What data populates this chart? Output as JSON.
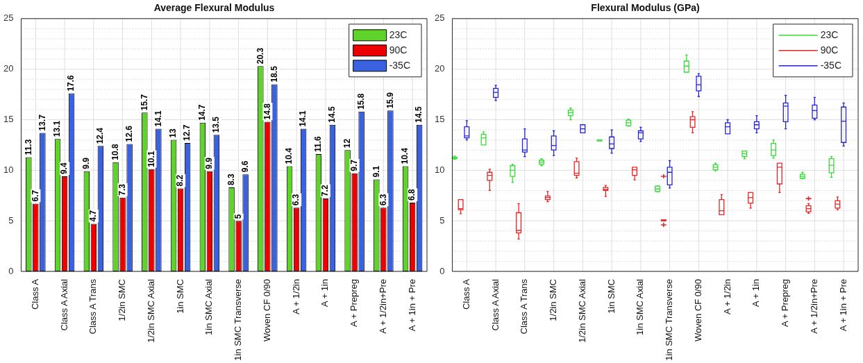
{
  "chart_data": [
    {
      "type": "bar",
      "title": "Average Flexural Modulus",
      "categories": [
        "Class A",
        "Class A Axial",
        "Class A Trans",
        "1/2in SMC",
        "1/2in SMC Axial",
        "1in SMC",
        "1in SMC Axial",
        "1in SMC Transverse",
        "Woven CF 0/90",
        "A + 1/2in",
        "A + 1in",
        "A + Prepreg",
        "A + 1/2in+Pre",
        "A + 1in + Pre"
      ],
      "series": [
        {
          "name": "23C",
          "color": "#5fd32a",
          "values": [
            11.3,
            13.1,
            9.9,
            10.8,
            15.7,
            13,
            14.7,
            8.3,
            20.3,
            10.4,
            11.6,
            12,
            9.1,
            10.4
          ]
        },
        {
          "name": "90C",
          "color": "#ee0000",
          "values": [
            6.7,
            9.4,
            4.7,
            7.3,
            10.1,
            8.2,
            9.9,
            5,
            14.8,
            6.3,
            7.2,
            9.7,
            6.3,
            6.8
          ]
        },
        {
          "name": "-35C",
          "color": "#3a62e0",
          "values": [
            13.7,
            17.6,
            12.4,
            12.6,
            14.1,
            12.7,
            13.5,
            9.6,
            18.5,
            14.1,
            14.5,
            15.8,
            15.9,
            14.5
          ]
        }
      ],
      "ylim": [
        0,
        25
      ],
      "yticks": [
        0,
        {
          "value": 1,
          "label": null
        },
        {
          "value": 2,
          "label": null
        },
        {
          "value": 3,
          "label": null
        },
        {
          "value": 4,
          "label": null
        },
        5,
        {
          "value": 6,
          "label": null
        },
        {
          "value": 7,
          "label": null
        },
        {
          "value": 8,
          "label": null
        },
        {
          "value": 9,
          "label": null
        },
        10,
        {
          "value": 11,
          "label": null
        },
        {
          "value": 12,
          "label": null
        },
        {
          "value": 13,
          "label": null
        },
        {
          "value": 14,
          "label": null
        },
        15,
        {
          "value": 16,
          "label": null
        },
        {
          "value": 17,
          "label": null
        },
        {
          "value": 18,
          "label": null
        },
        {
          "value": 19,
          "label": null
        },
        20,
        {
          "value": 21,
          "label": null
        },
        {
          "value": 22,
          "label": null
        },
        {
          "value": 23,
          "label": null
        },
        {
          "value": 24,
          "label": null
        },
        25
      ],
      "grid": true,
      "legend": "top right",
      "data_labels": true
    },
    {
      "type": "box",
      "title": "Flexural Modulus (GPa)",
      "categories": [
        "Class A",
        "Class A Axial",
        "Class A Trans",
        "1/2in SMC",
        "1/2in SMC Axial",
        "1in SMC",
        "1in SMC Axial",
        "1in SMC Transverse",
        "Woven CF 0/90",
        "A + 1/2in",
        "A + 1in",
        "A + Prepreg",
        "A + 1/2in+Pre",
        "A + 1in + Pre"
      ],
      "series": [
        {
          "name": "23C",
          "color": "#33dd33",
          "boxes": [
            {
              "low": 11.1,
              "q1": 11.15,
              "median": 11.2,
              "q3": 11.3,
              "high": 11.4
            },
            {
              "low": 12.5,
              "q1": 12.5,
              "median": 13.2,
              "q3": 13.55,
              "high": 13.8
            },
            {
              "low": 8.8,
              "q1": 9.4,
              "median": 10,
              "q3": 10.45,
              "high": 10.6
            },
            {
              "low": 10.45,
              "q1": 10.6,
              "median": 10.8,
              "q3": 11,
              "high": 11.15
            },
            {
              "low": 15,
              "q1": 15.4,
              "median": 15.7,
              "q3": 15.95,
              "high": 16.15
            },
            {
              "low": 12.9,
              "q1": 12.9,
              "median": 13,
              "q3": 13,
              "high": 13
            },
            {
              "low": 14.35,
              "q1": 14.4,
              "median": 14.7,
              "q3": 14.95,
              "high": 15.05
            },
            {
              "low": 7.85,
              "q1": 7.9,
              "median": 8.15,
              "q3": 8.43,
              "high": 8.45
            },
            {
              "low": 19.7,
              "q1": 19.7,
              "median": 20.3,
              "q3": 20.8,
              "high": 21.4
            },
            {
              "low": 9.95,
              "q1": 10.05,
              "median": 10.3,
              "q3": 10.55,
              "high": 10.7
            },
            {
              "low": 11.15,
              "q1": 11.35,
              "median": 11.65,
              "q3": 11.9,
              "high": 11.9
            },
            {
              "low": 11.2,
              "q1": 11.45,
              "median": 12,
              "q3": 12.65,
              "high": 13
            },
            {
              "low": 9.15,
              "q1": 9.2,
              "median": 9.4,
              "q3": 9.6,
              "high": 9.8
            },
            {
              "low": 9.3,
              "q1": 9.75,
              "median": 10.5,
              "q3": 11.15,
              "high": 11.35
            }
          ]
        },
        {
          "name": "90C",
          "color": "#ee2222",
          "boxes": [
            {
              "low": 5.7,
              "q1": 6.1,
              "median": 6.2,
              "q3": 7.1,
              "high": 7.1
            },
            {
              "low": 8,
              "q1": 9,
              "median": 9.5,
              "q3": 9.8,
              "high": 10.1
            },
            {
              "low": 3.2,
              "q1": 3.8,
              "median": 4.05,
              "q3": 5.8,
              "high": 6.7
            },
            {
              "low": 6.9,
              "q1": 7.1,
              "median": 7.3,
              "q3": 7.45,
              "high": 7.9
            },
            {
              "low": 9.25,
              "q1": 9.5,
              "median": 9.7,
              "q3": 10.85,
              "high": 11.2
            },
            {
              "low": 7.4,
              "q1": 8,
              "median": 8.1,
              "q3": 8.3,
              "high": 8.5
            },
            {
              "low": 9.05,
              "q1": 9.5,
              "median": 10.05,
              "q3": 10.3,
              "high": 10.3
            },
            {
              "low": 5,
              "q1": 5,
              "median": 5,
              "q3": 5.1,
              "high": 5.1,
              "outliers": [
                4.6,
                9.4
              ]
            },
            {
              "low": 13.7,
              "q1": 14.25,
              "median": 15,
              "q3": 15.3,
              "high": 15.8
            },
            {
              "low": 5.6,
              "q1": 5.6,
              "median": 6,
              "q3": 7.1,
              "high": 7.6
            },
            {
              "low": 6.25,
              "q1": 6.75,
              "median": 7.3,
              "q3": 7.8,
              "high": 7.8
            },
            {
              "low": 7.8,
              "q1": 8.65,
              "median": 10.3,
              "q3": 10.7,
              "high": 10.7
            },
            {
              "low": 5.75,
              "q1": 5.9,
              "median": 6.2,
              "q3": 6.5,
              "high": 6.7,
              "outliers": [
                7.2
              ]
            },
            {
              "low": 6.1,
              "q1": 6.25,
              "median": 6.65,
              "q3": 7,
              "high": 7.35
            }
          ]
        },
        {
          "name": "-35C",
          "color": "#2222dd",
          "boxes": [
            {
              "low": 13,
              "q1": 13.2,
              "median": 13.4,
              "q3": 14.3,
              "high": 14.9
            },
            {
              "low": 16.9,
              "q1": 17.2,
              "median": 17.7,
              "q3": 18.1,
              "high": 18.4
            },
            {
              "low": 11.35,
              "q1": 11.8,
              "median": 12,
              "q3": 13.1,
              "high": 14.1
            },
            {
              "low": 11.45,
              "q1": 12,
              "median": 12.45,
              "q3": 13.4,
              "high": 13.9
            },
            {
              "low": 13.7,
              "q1": 13.7,
              "median": 14.1,
              "q3": 14.5,
              "high": 14.5
            },
            {
              "low": 11.7,
              "q1": 12.15,
              "median": 12.6,
              "q3": 13.3,
              "high": 14
            },
            {
              "low": 12.85,
              "q1": 13.1,
              "median": 13.7,
              "q3": 13.9,
              "high": 14.25
            },
            {
              "low": 8.25,
              "q1": 8.55,
              "median": 9.8,
              "q3": 10.3,
              "high": 10.95
            },
            {
              "low": 17.3,
              "q1": 17.85,
              "median": 18.45,
              "q3": 19.3,
              "high": 19.55
            },
            {
              "low": 13.6,
              "q1": 13.6,
              "median": 14.3,
              "q3": 14.7,
              "high": 15
            },
            {
              "low": 13.7,
              "q1": 14.1,
              "median": 14.5,
              "q3": 14.8,
              "high": 15.4
            },
            {
              "low": 14.1,
              "q1": 14.8,
              "median": 16.35,
              "q3": 16.65,
              "high": 17.4
            },
            {
              "low": 15,
              "q1": 15.15,
              "median": 15.9,
              "q3": 16.45,
              "high": 17.2
            },
            {
              "low": 12.4,
              "q1": 12.75,
              "median": 14.85,
              "q3": 16.25,
              "high": 16.65
            }
          ]
        }
      ],
      "ylim": [
        0,
        25
      ],
      "yticks": [
        0,
        {
          "value": 1,
          "label": null
        },
        {
          "value": 2,
          "label": null
        },
        {
          "value": 3,
          "label": null
        },
        {
          "value": 4,
          "label": null
        },
        5,
        {
          "value": 6,
          "label": null
        },
        {
          "value": 7,
          "label": null
        },
        {
          "value": 8,
          "label": null
        },
        {
          "value": 9,
          "label": null
        },
        10,
        {
          "value": 11,
          "label": null
        },
        {
          "value": 12,
          "label": null
        },
        {
          "value": 13,
          "label": null
        },
        {
          "value": 14,
          "label": null
        },
        15,
        {
          "value": 16,
          "label": null
        },
        {
          "value": 17,
          "label": null
        },
        {
          "value": 18,
          "label": null
        },
        {
          "value": 19,
          "label": null
        },
        20,
        {
          "value": 21,
          "label": null
        },
        {
          "value": 22,
          "label": null
        },
        {
          "value": 23,
          "label": null
        },
        {
          "value": 24,
          "label": null
        },
        25
      ],
      "grid": true,
      "legend": "top right"
    }
  ]
}
